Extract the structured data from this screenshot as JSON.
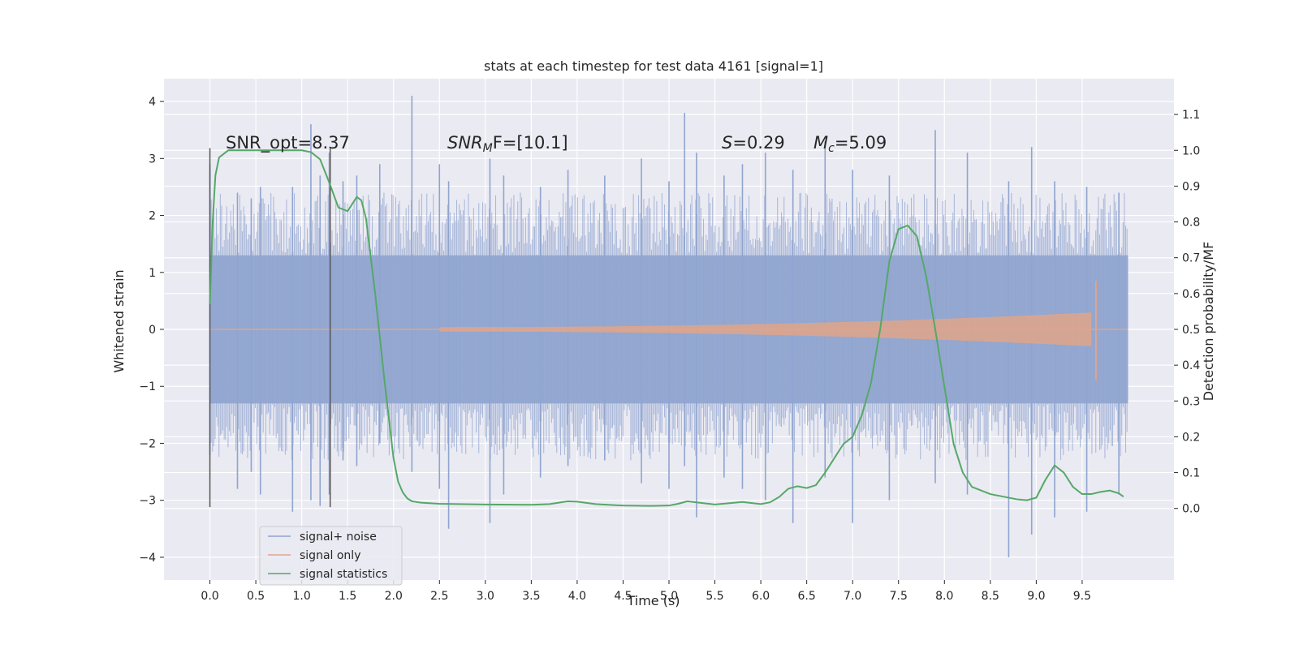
{
  "chart_data": {
    "type": "line",
    "title": "stats at each timestep for test data 4161 [signal=1]",
    "xlabel": "Time (s)",
    "ylabel_left": "Whitened strain",
    "ylabel_right": "Detection probability/MF",
    "xlim": [
      -0.5,
      10.5
    ],
    "ylim_left": [
      -4.4,
      4.4
    ],
    "ylim_right": [
      -0.2,
      1.2
    ],
    "x_ticks": [
      "0.0",
      "0.5",
      "1.0",
      "1.5",
      "2.0",
      "2.5",
      "3.0",
      "3.5",
      "4.0",
      "4.5",
      "5.0",
      "5.5",
      "6.0",
      "6.5",
      "7.0",
      "7.5",
      "8.0",
      "8.5",
      "9.0",
      "9.5"
    ],
    "y_left_ticks": [
      "4",
      "3",
      "2",
      "1",
      "0",
      "−1",
      "−2",
      "−3",
      "−4"
    ],
    "y_right_ticks": [
      "1.1",
      "1.0",
      "0.9",
      "0.8",
      "0.7",
      "0.6",
      "0.5",
      "0.4",
      "0.3",
      "0.2",
      "0.1",
      "0.0"
    ],
    "grid": true,
    "legend_position": "lower-left",
    "annotations": {
      "snr_opt": "SNR_opt=8.37",
      "snr_mf_main": "SNR",
      "snr_mf_sub": "M",
      "snr_mf_rest": "F=[10.1]",
      "s_main": "S",
      "s_rest": "=0.29",
      "mc_main": "M",
      "mc_sub": "c",
      "mc_rest": "=5.09"
    },
    "vertical_lines": [
      0.0,
      1.31
    ],
    "series": [
      {
        "name": "signal+ noise",
        "color": "#8fa4cf",
        "x_range": [
          0.0,
          10.0
        ],
        "band": [
          -1.3,
          1.3
        ],
        "spikes": [
          [
            0.0,
            2.9,
            -2.2
          ],
          [
            0.3,
            2.4,
            -2.8
          ],
          [
            0.45,
            2.3,
            -2.5
          ],
          [
            0.55,
            2.5,
            -2.9
          ],
          [
            0.9,
            2.5,
            -3.2
          ],
          [
            1.1,
            3.6,
            -3.0
          ],
          [
            1.2,
            2.7,
            -3.1
          ],
          [
            1.3,
            3.1,
            -2.9
          ],
          [
            1.45,
            2.6,
            -2.3
          ],
          [
            1.6,
            2.7,
            -2.4
          ],
          [
            1.85,
            2.9,
            -2.0
          ],
          [
            2.2,
            4.1,
            -2.5
          ],
          [
            2.5,
            2.9,
            -2.8
          ],
          [
            2.6,
            2.6,
            -3.5
          ],
          [
            3.05,
            3.0,
            -3.4
          ],
          [
            3.2,
            2.7,
            -2.9
          ],
          [
            3.6,
            2.5,
            -2.6
          ],
          [
            3.9,
            2.8,
            -2.4
          ],
          [
            4.3,
            2.7,
            -2.3
          ],
          [
            4.7,
            3.0,
            -2.7
          ],
          [
            5.0,
            2.6,
            -2.8
          ],
          [
            5.17,
            3.8,
            -2.4
          ],
          [
            5.3,
            3.1,
            -3.3
          ],
          [
            5.6,
            2.7,
            -2.6
          ],
          [
            5.8,
            2.9,
            -2.8
          ],
          [
            6.05,
            3.1,
            -3.0
          ],
          [
            6.35,
            2.8,
            -3.4
          ],
          [
            6.7,
            3.3,
            -2.6
          ],
          [
            7.0,
            2.8,
            -3.4
          ],
          [
            7.4,
            2.7,
            -3.0
          ],
          [
            7.9,
            3.5,
            -2.7
          ],
          [
            8.25,
            3.1,
            -2.9
          ],
          [
            8.7,
            2.6,
            -4.0
          ],
          [
            8.95,
            3.2,
            -3.6
          ],
          [
            9.2,
            2.6,
            -3.3
          ],
          [
            9.55,
            2.5,
            -3.2
          ],
          [
            9.9,
            2.4,
            -2.9
          ]
        ]
      },
      {
        "name": "signal only",
        "color": "#e1a48a",
        "chirp_start": 2.5,
        "chirp_end": 9.65,
        "peak_amplitude": 0.85
      },
      {
        "name": "signal statistics",
        "color": "#55a868",
        "x": [
          0.0,
          0.03,
          0.06,
          0.1,
          0.15,
          0.2,
          0.3,
          0.5,
          0.8,
          1.0,
          1.1,
          1.2,
          1.3,
          1.4,
          1.5,
          1.55,
          1.6,
          1.65,
          1.7,
          1.8,
          1.9,
          1.95,
          2.0,
          2.05,
          2.1,
          2.15,
          2.2,
          2.3,
          2.5,
          3.0,
          3.5,
          3.7,
          3.9,
          4.0,
          4.2,
          4.5,
          4.8,
          5.0,
          5.1,
          5.2,
          5.3,
          5.5,
          5.8,
          6.0,
          6.1,
          6.2,
          6.3,
          6.4,
          6.5,
          6.6,
          6.7,
          6.8,
          6.9,
          7.0,
          7.1,
          7.2,
          7.3,
          7.4,
          7.5,
          7.6,
          7.7,
          7.8,
          7.9,
          8.0,
          8.1,
          8.2,
          8.3,
          8.5,
          8.8,
          8.9,
          9.0,
          9.1,
          9.2,
          9.3,
          9.4,
          9.5,
          9.6,
          9.7,
          9.8,
          9.9,
          9.95
        ],
        "values": [
          0.57,
          0.8,
          0.93,
          0.98,
          0.99,
          1.0,
          1.0,
          1.0,
          1.0,
          1.0,
          0.995,
          0.975,
          0.91,
          0.84,
          0.83,
          0.85,
          0.87,
          0.86,
          0.81,
          0.6,
          0.36,
          0.25,
          0.14,
          0.075,
          0.045,
          0.028,
          0.02,
          0.016,
          0.013,
          0.011,
          0.01,
          0.012,
          0.02,
          0.019,
          0.012,
          0.008,
          0.007,
          0.008,
          0.013,
          0.02,
          0.017,
          0.011,
          0.018,
          0.012,
          0.017,
          0.032,
          0.055,
          0.062,
          0.057,
          0.065,
          0.1,
          0.14,
          0.18,
          0.2,
          0.26,
          0.35,
          0.5,
          0.69,
          0.78,
          0.79,
          0.76,
          0.65,
          0.5,
          0.34,
          0.18,
          0.1,
          0.06,
          0.04,
          0.025,
          0.023,
          0.03,
          0.08,
          0.12,
          0.1,
          0.06,
          0.04,
          0.04,
          0.046,
          0.05,
          0.042,
          0.033
        ]
      }
    ]
  }
}
